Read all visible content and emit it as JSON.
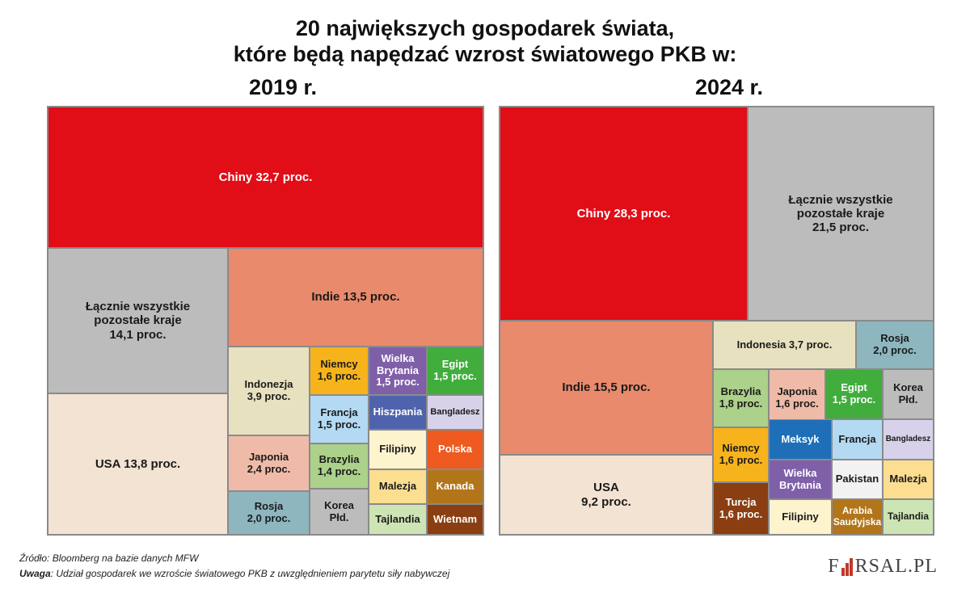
{
  "header": {
    "title_line1": "20 największych gospodarek świata,",
    "title_line2": "które będą napędzać wzrost światowego PKB w:"
  },
  "chart_data": [
    {
      "type": "treemap",
      "title": "2019 r.",
      "value_unit": "proc.",
      "items": [
        {
          "label": "Chiny 32,7 proc.",
          "name": "Chiny",
          "value": 32.7,
          "color": "#e10d17"
        },
        {
          "label": "Łącznie wszystkie pozostałe kraje 14,1 proc.",
          "name": "Łącznie wszystkie pozostałe kraje",
          "value": 14.1,
          "color": "#bcbcbc"
        },
        {
          "label": "USA 13,8 proc.",
          "name": "USA",
          "value": 13.8,
          "color": "#f3e3d3"
        },
        {
          "label": "Indie 13,5 proc.",
          "name": "Indie",
          "value": 13.5,
          "color": "#e98a6c"
        },
        {
          "label": "Indonezja 3,9 proc.",
          "name": "Indonezja",
          "value": 3.9,
          "color": "#e8e1bf"
        },
        {
          "label": "Japonia 2,4 proc.",
          "name": "Japonia",
          "value": 2.4,
          "color": "#efbba8"
        },
        {
          "label": "Rosja 2,0 proc.",
          "name": "Rosja",
          "value": 2.0,
          "color": "#8db6bf"
        },
        {
          "label": "Niemcy 1,6 proc.",
          "name": "Niemcy",
          "value": 1.6,
          "color": "#f7b31b"
        },
        {
          "label": "Francja 1,5 proc.",
          "name": "Francja",
          "value": 1.5,
          "color": "#b4d9f3"
        },
        {
          "label": "Brazylia 1,4 proc.",
          "name": "Brazylia",
          "value": 1.4,
          "color": "#acd18a"
        },
        {
          "label": "Korea Płd.",
          "name": "Korea Płd.",
          "color": "#bcbcbc"
        },
        {
          "label": "Wielka Brytania 1,5 proc.",
          "name": "Wielka Brytania",
          "value": 1.5,
          "color": "#7f5fa8"
        },
        {
          "label": "Egipt 1,5 proc.",
          "name": "Egipt",
          "value": 1.5,
          "color": "#40ad3c"
        },
        {
          "label": "Hiszpania",
          "name": "Hiszpania",
          "color": "#4f63ad"
        },
        {
          "label": "Bangladesz",
          "name": "Bangladesz",
          "color": "#d7d2ea"
        },
        {
          "label": "Filipiny",
          "name": "Filipiny",
          "color": "#fdf3cd"
        },
        {
          "label": "Polska",
          "name": "Polska",
          "color": "#ee5a1f"
        },
        {
          "label": "Malezja",
          "name": "Malezja",
          "color": "#fcde91"
        },
        {
          "label": "Kanada",
          "name": "Kanada",
          "color": "#b27519"
        },
        {
          "label": "Tajlandia",
          "name": "Tajlandia",
          "color": "#cde5b4"
        },
        {
          "label": "Wietnam",
          "name": "Wietnam",
          "color": "#8a3e12"
        }
      ]
    },
    {
      "type": "treemap",
      "title": "2024 r.",
      "value_unit": "proc.",
      "items": [
        {
          "label": "Chiny 28,3 proc.",
          "name": "Chiny",
          "value": 28.3,
          "color": "#e10d17"
        },
        {
          "label": "Łącznie wszystkie pozostałe kraje 21,5 proc.",
          "name": "Łącznie wszystkie pozostałe kraje",
          "value": 21.5,
          "color": "#bcbcbc"
        },
        {
          "label": "Indie 15,5 proc.",
          "name": "Indie",
          "value": 15.5,
          "color": "#e98a6c"
        },
        {
          "label": "USA 9,2 proc.",
          "name": "USA",
          "value": 9.2,
          "color": "#f3e3d3"
        },
        {
          "label": "Indonesia 3,7 proc.",
          "name": "Indonesia",
          "value": 3.7,
          "color": "#e8e1bf"
        },
        {
          "label": "Rosja 2,0 proc.",
          "name": "Rosja",
          "value": 2.0,
          "color": "#8db6bf"
        },
        {
          "label": "Brazylia 1,8 proc.",
          "name": "Brazylia",
          "value": 1.8,
          "color": "#acd18a"
        },
        {
          "label": "Japonia 1,6 proc.",
          "name": "Japonia",
          "value": 1.6,
          "color": "#efbba8"
        },
        {
          "label": "Egipt 1,5 proc.",
          "name": "Egipt",
          "value": 1.5,
          "color": "#40ad3c"
        },
        {
          "label": "Korea Płd.",
          "name": "Korea Płd.",
          "color": "#bcbcbc"
        },
        {
          "label": "Niemcy 1,6 proc.",
          "name": "Niemcy",
          "value": 1.6,
          "color": "#f7b31b"
        },
        {
          "label": "Meksyk",
          "name": "Meksyk",
          "color": "#1e6fb8"
        },
        {
          "label": "Francja",
          "name": "Francja",
          "color": "#b4d9f3"
        },
        {
          "label": "Bangladesz",
          "name": "Bangladesz",
          "color": "#d7d2ea"
        },
        {
          "label": "Turcja 1,6 proc.",
          "name": "Turcja",
          "value": 1.6,
          "color": "#8a3e12"
        },
        {
          "label": "Wielka Brytania",
          "name": "Wielka Brytania",
          "color": "#7f5fa8"
        },
        {
          "label": "Pakistan",
          "name": "Pakistan",
          "color": "#f2f2f2"
        },
        {
          "label": "Malezja",
          "name": "Malezja",
          "color": "#fcde91"
        },
        {
          "label": "Filipiny",
          "name": "Filipiny",
          "color": "#fdf3cd"
        },
        {
          "label": "Arabia Saudyjska",
          "name": "Arabia Saudyjska",
          "color": "#b27519"
        },
        {
          "label": "Tajlandia",
          "name": "Tajlandia",
          "color": "#cde5b4"
        }
      ]
    }
  ],
  "footer": {
    "source_label": "Źródło:",
    "source_text": " Bloomberg na bazie danych MFW",
    "note_label": "Uwaga",
    "note_text": ": Udział gospodarek we wzroście światowego PKB z uwzględnieniem parytetu siły nabywczej",
    "brand_left": "F",
    "brand_right": "RSAL.PL"
  }
}
